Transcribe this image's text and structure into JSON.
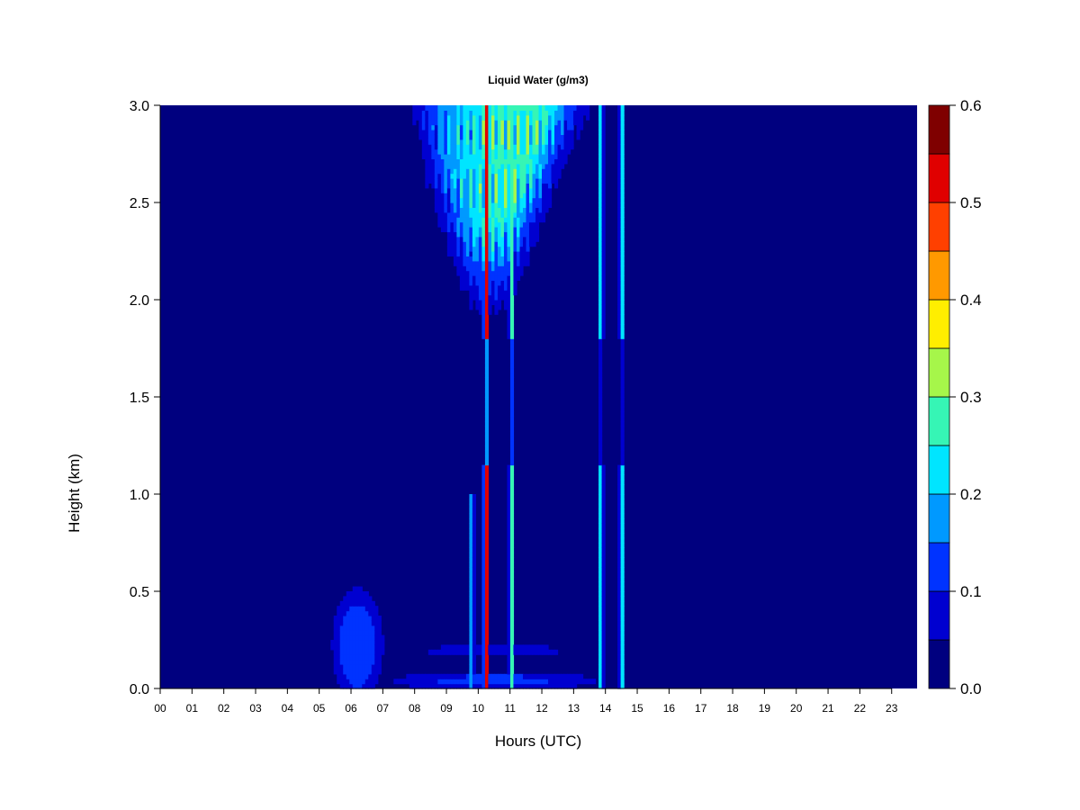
{
  "chart_data": {
    "type": "heatmap",
    "title": "Liquid Water (g/m3)",
    "xlabel": "Hours (UTC)",
    "ylabel": "Height (km)",
    "x_ticks": [
      "00",
      "01",
      "02",
      "03",
      "04",
      "05",
      "06",
      "07",
      "08",
      "09",
      "10",
      "11",
      "12",
      "13",
      "14",
      "15",
      "16",
      "17",
      "18",
      "19",
      "20",
      "21",
      "22",
      "23"
    ],
    "xlim": [
      0,
      23.8
    ],
    "y_ticks": [
      "0.0",
      "0.5",
      "1.0",
      "1.5",
      "2.0",
      "2.5",
      "3.0"
    ],
    "ylim": [
      0,
      3.0
    ],
    "colorbar": {
      "ticks": [
        "0.0",
        "0.1",
        "0.2",
        "0.3",
        "0.4",
        "0.5",
        "0.6"
      ],
      "range": [
        0,
        0.6
      ],
      "levels": [
        0,
        0.05,
        0.1,
        0.15,
        0.2,
        0.25,
        0.3,
        0.35,
        0.4,
        0.45,
        0.5,
        0.55,
        0.6
      ],
      "colors": [
        "#00007f",
        "#0000d0",
        "#0033ff",
        "#0099ff",
        "#00e5ff",
        "#36f5b5",
        "#a6f64a",
        "#ffee00",
        "#ff9900",
        "#ff4000",
        "#e00000",
        "#7f0000"
      ]
    },
    "features": [
      {
        "kind": "upper-cloud",
        "hours": [
          8.0,
          15.5
        ],
        "height_km": [
          1.8,
          3.0
        ],
        "max_value": 0.35
      },
      {
        "kind": "core-column",
        "hour": 10.25,
        "height_km": [
          0,
          3.0
        ],
        "max_value": 0.55
      },
      {
        "kind": "column",
        "hour": 9.8,
        "height_km": [
          0,
          1.0
        ],
        "max_value": 0.2
      },
      {
        "kind": "column",
        "hour": 11.05,
        "height_km": [
          0,
          3.0
        ],
        "max_value": 0.3
      },
      {
        "kind": "column",
        "hour": 13.85,
        "height_km": [
          0,
          3.0
        ],
        "max_value": 0.25
      },
      {
        "kind": "column",
        "hour": 14.5,
        "height_km": [
          0,
          3.0
        ],
        "max_value": 0.25
      },
      {
        "kind": "low-cloud",
        "hours": [
          4.5,
          15.0
        ],
        "height_km": [
          0,
          0.4
        ],
        "max_value": 0.15
      },
      {
        "kind": "low-blob",
        "hour": 6.2,
        "height_km": [
          0,
          0.7
        ],
        "max_value": 0.1
      }
    ]
  }
}
